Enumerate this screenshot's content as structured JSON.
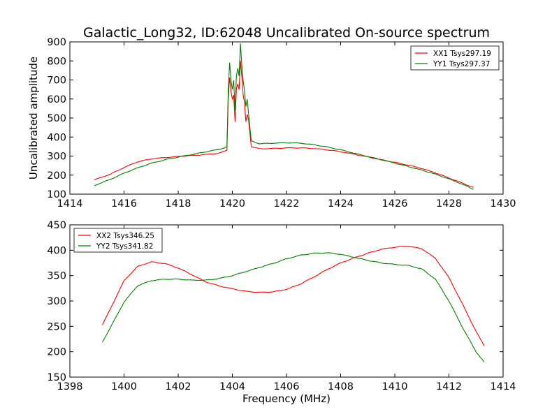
{
  "title": "Galactic_Long32, ID:62048 Uncalibrated On-source spectrum",
  "chart_data": [
    {
      "type": "line",
      "title": "Galactic_Long32, ID:62048 Uncalibrated On-source spectrum",
      "xlabel": "",
      "ylabel": "Uncalibrated amplitude",
      "xlim": [
        1414,
        1430
      ],
      "ylim": [
        100,
        900
      ],
      "xticks": [
        1414,
        1416,
        1418,
        1420,
        1422,
        1424,
        1426,
        1428,
        1430
      ],
      "yticks": [
        100,
        200,
        300,
        400,
        500,
        600,
        700,
        800,
        900
      ],
      "legend_position": "top-right",
      "grid": false,
      "series": [
        {
          "name": "XX1 Tsys297.19",
          "color": "#ff0000",
          "x": [
            1414.9,
            1415.5,
            1416.0,
            1416.5,
            1417.0,
            1417.5,
            1418.0,
            1418.5,
            1419.0,
            1419.5,
            1419.8,
            1419.85,
            1419.9,
            1419.95,
            1420.0,
            1420.05,
            1420.1,
            1420.15,
            1420.2,
            1420.25,
            1420.3,
            1420.35,
            1420.4,
            1420.45,
            1420.5,
            1420.55,
            1420.6,
            1420.7,
            1421.0,
            1421.5,
            1422.0,
            1422.5,
            1423.0,
            1423.5,
            1424.0,
            1424.5,
            1425.0,
            1425.5,
            1426.0,
            1426.5,
            1427.0,
            1427.5,
            1428.0,
            1428.5,
            1428.9
          ],
          "values": [
            175,
            205,
            240,
            270,
            285,
            292,
            298,
            303,
            308,
            315,
            330,
            600,
            715,
            640,
            600,
            620,
            480,
            650,
            680,
            650,
            800,
            720,
            620,
            580,
            480,
            520,
            490,
            350,
            338,
            340,
            343,
            343,
            340,
            333,
            323,
            310,
            295,
            281,
            267,
            252,
            235,
            212,
            185,
            158,
            135
          ]
        },
        {
          "name": "YY1 Tsys297.37",
          "color": "#008000",
          "x": [
            1414.9,
            1415.5,
            1416.0,
            1416.5,
            1417.0,
            1417.5,
            1418.0,
            1418.5,
            1419.0,
            1419.5,
            1419.8,
            1419.85,
            1419.9,
            1419.95,
            1420.0,
            1420.05,
            1420.1,
            1420.15,
            1420.2,
            1420.25,
            1420.3,
            1420.35,
            1420.4,
            1420.45,
            1420.5,
            1420.55,
            1420.6,
            1420.7,
            1421.0,
            1421.5,
            1422.0,
            1422.5,
            1423.0,
            1423.5,
            1424.0,
            1424.5,
            1425.0,
            1425.5,
            1426.0,
            1426.5,
            1427.0,
            1427.5,
            1428.0,
            1428.5,
            1428.9
          ],
          "values": [
            145,
            178,
            210,
            238,
            262,
            280,
            295,
            308,
            322,
            335,
            348,
            650,
            790,
            700,
            650,
            700,
            540,
            720,
            760,
            720,
            890,
            780,
            700,
            640,
            560,
            600,
            520,
            380,
            365,
            368,
            370,
            368,
            360,
            348,
            333,
            315,
            298,
            281,
            263,
            245,
            226,
            205,
            180,
            152,
            125
          ]
        }
      ]
    },
    {
      "type": "line",
      "title": "",
      "xlabel": "Frequency (MHz)",
      "ylabel": "",
      "xlim": [
        1398,
        1414
      ],
      "ylim": [
        150,
        450
      ],
      "xticks": [
        1398,
        1400,
        1402,
        1404,
        1406,
        1408,
        1410,
        1412,
        1414
      ],
      "yticks": [
        150,
        200,
        250,
        300,
        350,
        400,
        450
      ],
      "legend_position": "top-left",
      "grid": false,
      "series": [
        {
          "name": "XX2 Tsys346.25",
          "color": "#ff0000",
          "x": [
            1399.2,
            1399.5,
            1400.0,
            1400.5,
            1401.0,
            1401.5,
            1402.0,
            1402.5,
            1403.0,
            1403.5,
            1404.0,
            1404.5,
            1405.0,
            1405.5,
            1406.0,
            1406.5,
            1407.0,
            1407.5,
            1408.0,
            1408.5,
            1409.0,
            1409.5,
            1410.0,
            1410.5,
            1411.0,
            1411.5,
            1412.0,
            1412.5,
            1413.0,
            1413.3
          ],
          "values": [
            253,
            285,
            340,
            368,
            377,
            374,
            365,
            352,
            338,
            330,
            324,
            319,
            317,
            318,
            323,
            333,
            347,
            362,
            375,
            385,
            394,
            402,
            406,
            408,
            403,
            384,
            346,
            294,
            240,
            212
          ]
        },
        {
          "name": "YY2 Tsys341.82",
          "color": "#008000",
          "x": [
            1399.2,
            1399.5,
            1400.0,
            1400.5,
            1401.0,
            1401.5,
            1402.0,
            1402.5,
            1403.0,
            1403.5,
            1404.0,
            1404.5,
            1405.0,
            1405.5,
            1406.0,
            1406.5,
            1407.0,
            1407.5,
            1408.0,
            1408.5,
            1409.0,
            1409.5,
            1410.0,
            1410.5,
            1411.0,
            1411.5,
            1412.0,
            1412.5,
            1413.0,
            1413.3
          ],
          "values": [
            219,
            248,
            298,
            330,
            340,
            343,
            343,
            341,
            341,
            344,
            350,
            358,
            366,
            374,
            383,
            390,
            394,
            395,
            392,
            386,
            380,
            375,
            372,
            370,
            363,
            343,
            300,
            248,
            200,
            180
          ]
        }
      ]
    }
  ]
}
